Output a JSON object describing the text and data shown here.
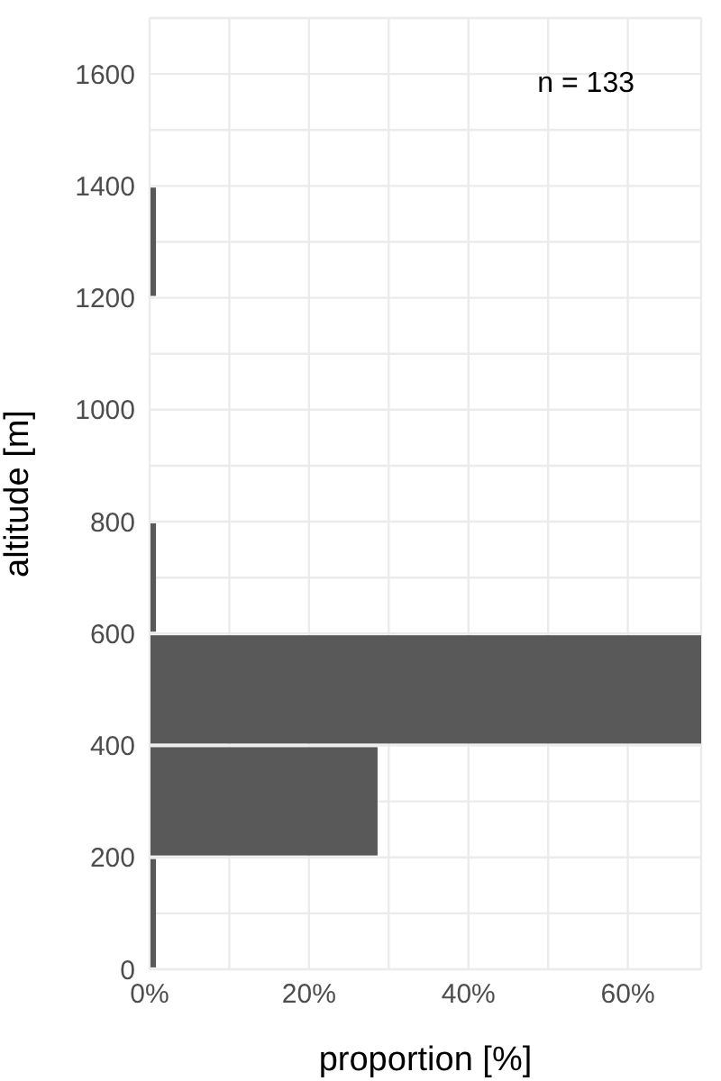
{
  "chart_data": {
    "type": "histogram",
    "orientation": "horizontal",
    "xlabel": "proportion [%]",
    "ylabel": "altitude [m]",
    "annotations": [
      "n = 133"
    ],
    "bins": [
      0,
      200,
      400,
      600,
      800,
      1000,
      1200,
      1400
    ],
    "values": [
      0.8,
      28.6,
      69.2,
      0.8,
      0,
      0,
      0.8
    ],
    "color": "#595959",
    "xlim": [
      0,
      69.2
    ],
    "xticks": [
      {
        "value": 0,
        "label": "0%"
      },
      {
        "value": 10,
        "label": null
      },
      {
        "value": 20,
        "label": "20%"
      },
      {
        "value": 30,
        "label": null
      },
      {
        "value": 40,
        "label": "40%"
      },
      {
        "value": 50,
        "label": null
      },
      {
        "value": 60,
        "label": "60%"
      }
    ],
    "ylim": [
      0,
      1700
    ],
    "yticks": [
      0,
      {
        "value": 100,
        "label": null
      },
      200,
      {
        "value": 300,
        "label": null
      },
      400,
      600,
      {
        "value": 700,
        "label": null
      },
      800,
      {
        "value": 900,
        "label": null
      },
      1000,
      {
        "value": 1100,
        "label": null
      },
      1200,
      {
        "value": 1300,
        "label": null
      },
      1400,
      {
        "value": 1500,
        "label": null
      },
      1600,
      {
        "value": 1700,
        "label": null
      }
    ],
    "grid": true
  }
}
